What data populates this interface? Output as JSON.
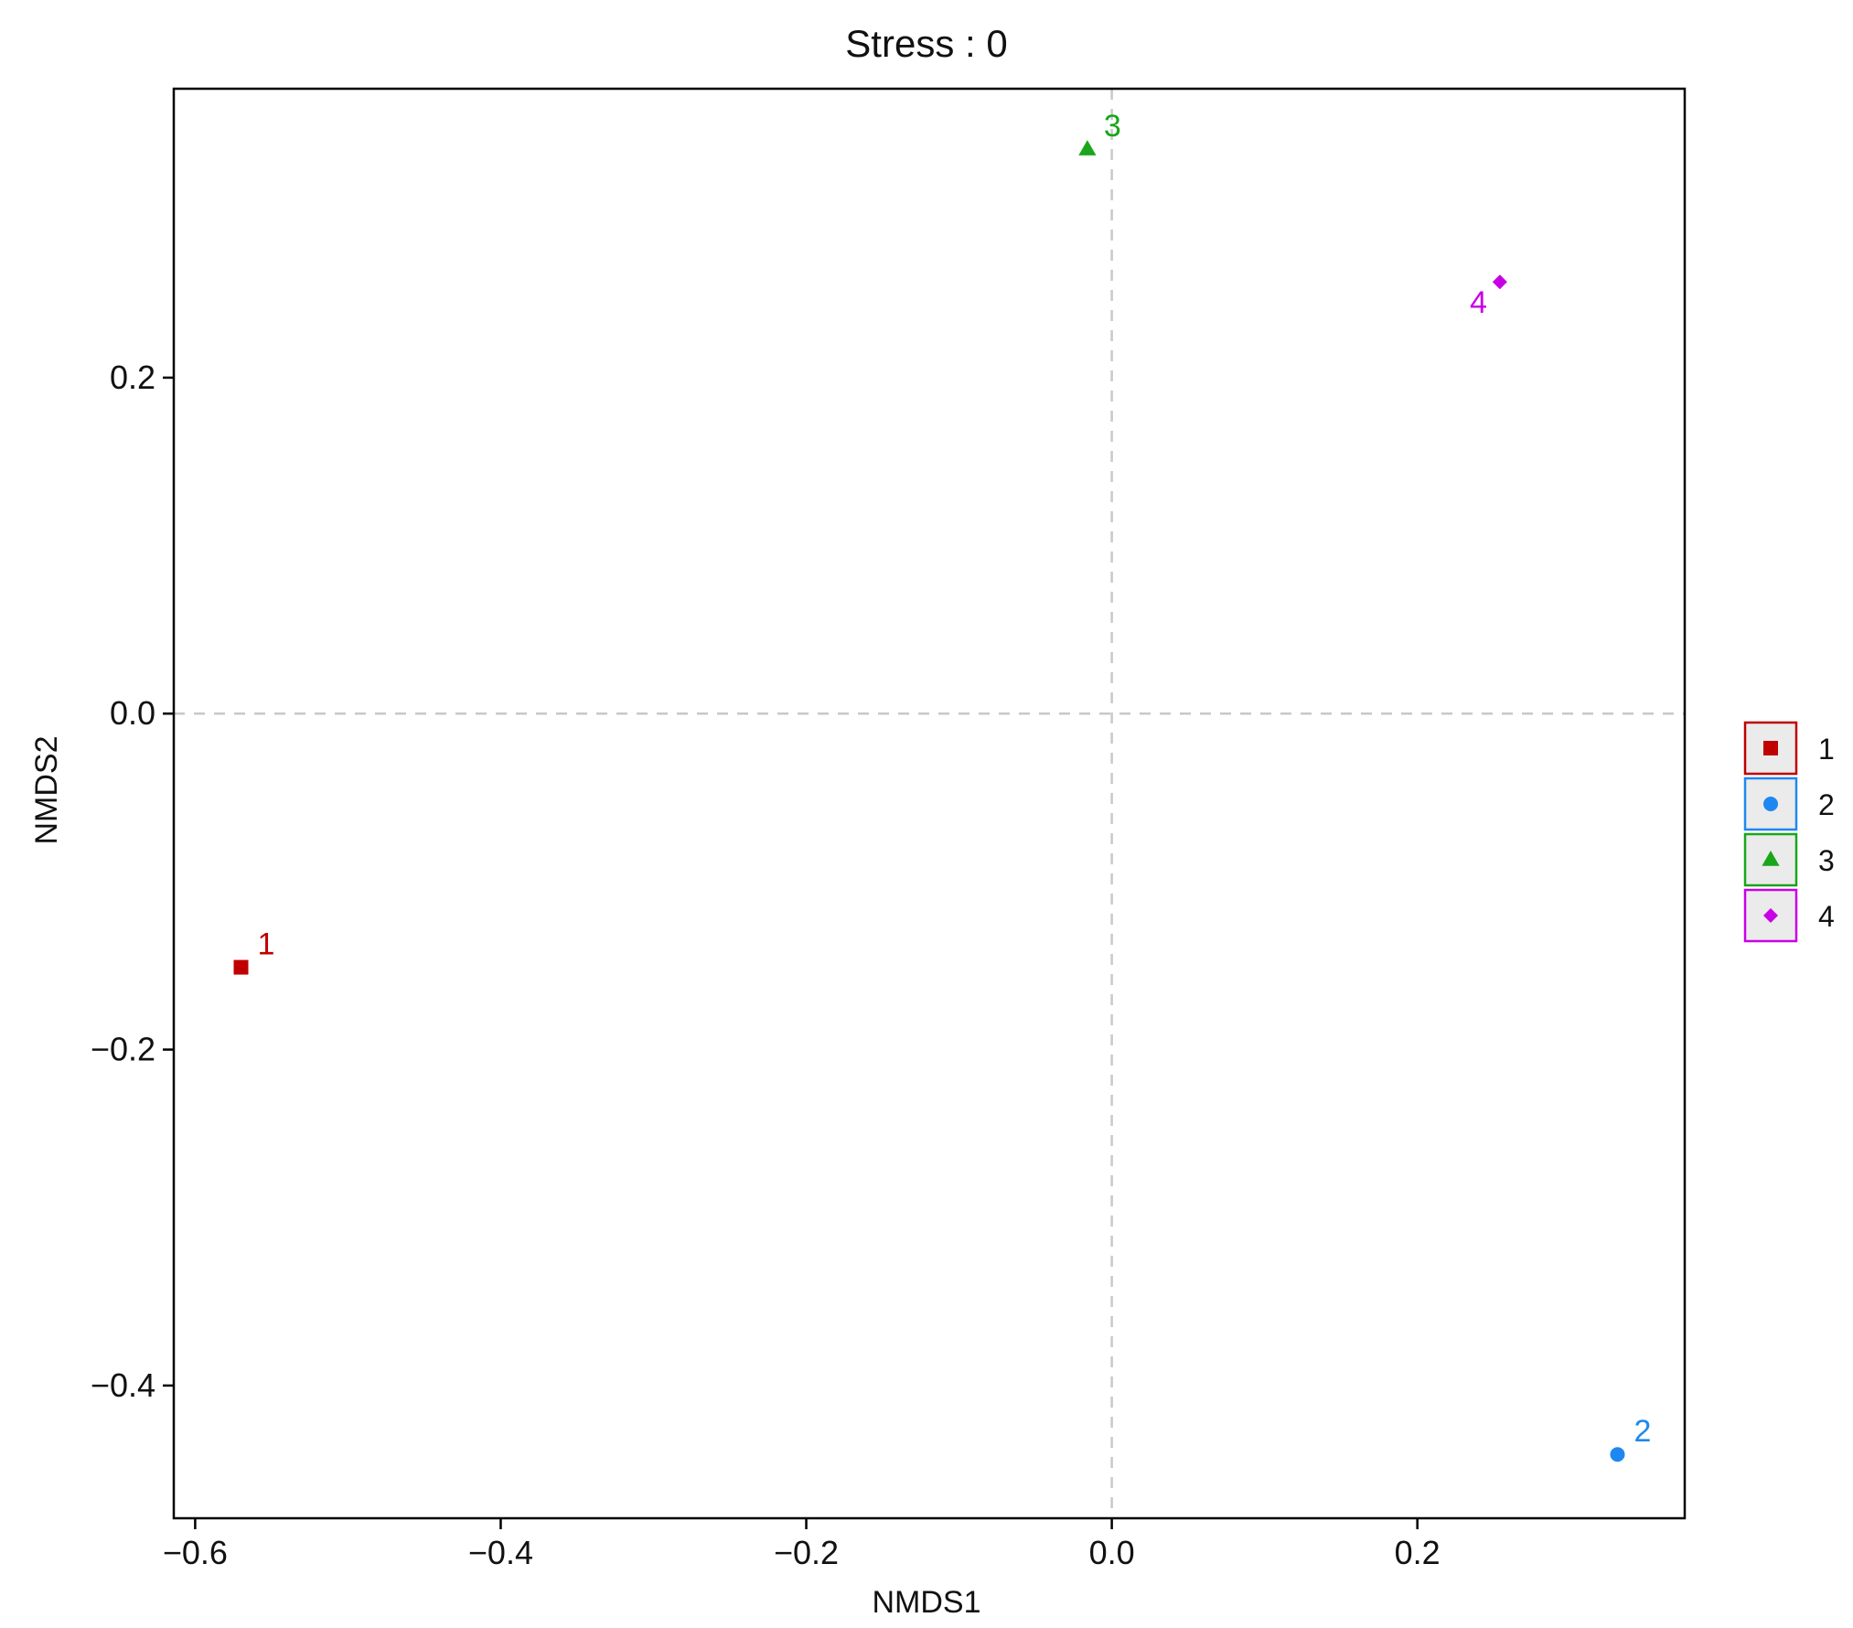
{
  "chart_data": {
    "type": "scatter",
    "title": "Stress : 0",
    "xlabel": "NMDS1",
    "ylabel": "NMDS2",
    "xlim": [
      -0.614,
      0.375
    ],
    "ylim": [
      -0.479,
      0.372
    ],
    "xticks": [
      {
        "value": -0.6,
        "label": "−0.6"
      },
      {
        "value": -0.4,
        "label": "−0.4"
      },
      {
        "value": -0.2,
        "label": "−0.2"
      },
      {
        "value": 0.0,
        "label": "0.0"
      },
      {
        "value": 0.2,
        "label": "0.2"
      }
    ],
    "yticks": [
      {
        "value": -0.4,
        "label": "−0.4"
      },
      {
        "value": -0.2,
        "label": "−0.2"
      },
      {
        "value": 0.0,
        "label": "0.0"
      },
      {
        "value": 0.2,
        "label": "0.2"
      }
    ],
    "reference_lines": {
      "x": 0,
      "y": 0,
      "style": "dashed",
      "color": "#c8c8c8"
    },
    "grid": false,
    "legend_position": "right",
    "series": [
      {
        "name": "1",
        "x": -0.57,
        "y": -0.151,
        "color": "#c00000",
        "shape": "square",
        "label": "1",
        "label_side": "upper-right"
      },
      {
        "name": "2",
        "x": 0.331,
        "y": -0.441,
        "color": "#1e88f0",
        "shape": "circle",
        "label": "2",
        "label_side": "upper-right"
      },
      {
        "name": "3",
        "x": -0.016,
        "y": 0.336,
        "color": "#1aa51a",
        "shape": "triangle",
        "label": "3",
        "label_side": "upper-right"
      },
      {
        "name": "4",
        "x": 0.254,
        "y": 0.257,
        "color": "#c800e6",
        "shape": "diamond",
        "label": "4",
        "label_side": "lower-left"
      }
    ]
  }
}
